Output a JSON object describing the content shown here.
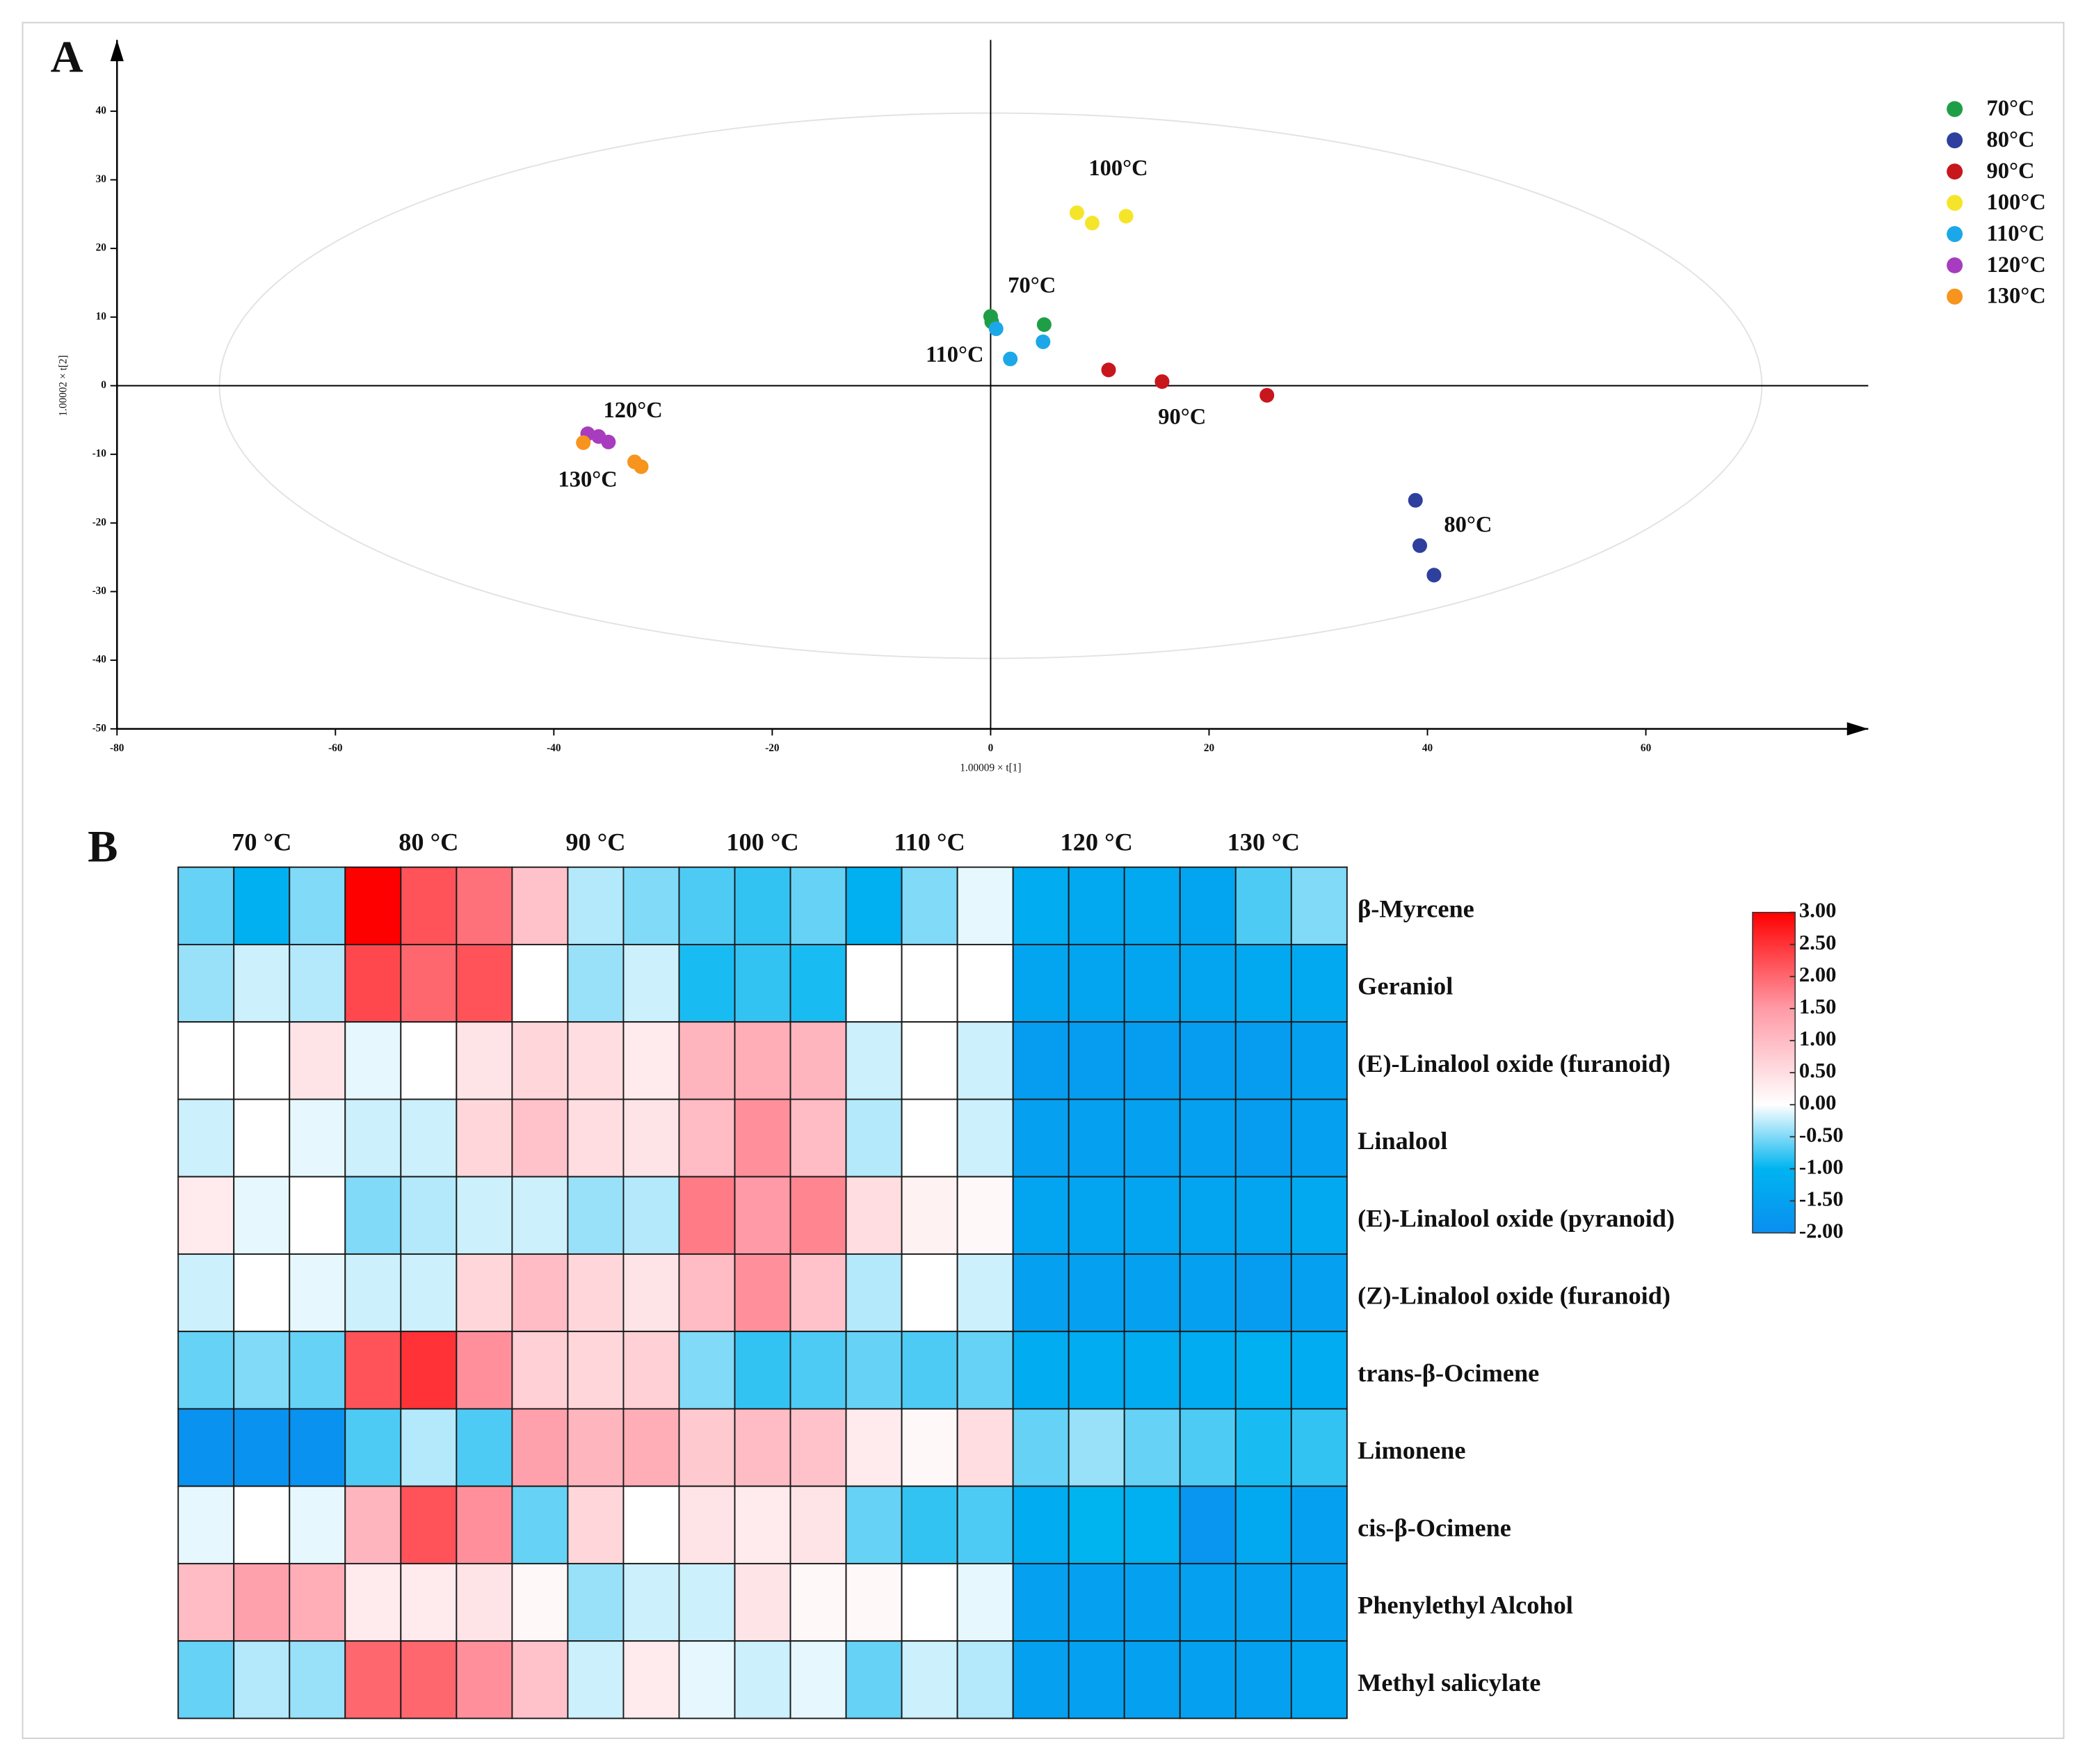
{
  "chart_data": [
    {
      "type": "scatter",
      "panel": "A",
      "xlabel": "1.00009 × t[1]",
      "ylabel": "1.00002 × t[2]",
      "xlim": [
        -80,
        80
      ],
      "ylim": [
        -50,
        50
      ],
      "xticks": [
        -80,
        -60,
        -40,
        -20,
        0,
        20,
        40,
        60
      ],
      "yticks": [
        -50,
        -40,
        -30,
        -20,
        -10,
        0,
        10,
        20,
        30,
        40
      ],
      "series": [
        {
          "name": "70°C",
          "color": "#1f9e48",
          "x": [
            0,
            0.1,
            4.9
          ],
          "values": [
            10.1,
            9.3,
            8.9
          ]
        },
        {
          "name": "80°C",
          "color": "#2e3f9e",
          "x": [
            38.9,
            39.3,
            40.6
          ],
          "values": [
            -16.7,
            -23.3,
            -27.6
          ]
        },
        {
          "name": "90°C",
          "color": "#c8161d",
          "x": [
            10.8,
            15.7,
            25.3
          ],
          "values": [
            2.3,
            0.6,
            -1.4
          ]
        },
        {
          "name": "100°C",
          "color": "#f5e52a",
          "x": [
            7.9,
            9.3,
            12.4
          ],
          "values": [
            25.2,
            23.7,
            24.7
          ]
        },
        {
          "name": "110°C",
          "color": "#1ca8e8",
          "x": [
            0.5,
            1.8,
            4.8
          ],
          "values": [
            8.3,
            3.9,
            6.4
          ]
        },
        {
          "name": "120°C",
          "color": "#a83cbf",
          "x": [
            -36.9,
            -35.9,
            -35.0
          ],
          "values": [
            -7.0,
            -7.4,
            -8.2
          ]
        },
        {
          "name": "130°C",
          "color": "#f7941d",
          "x": [
            -37.3,
            -32.6,
            -32.0
          ],
          "values": [
            -8.3,
            -11.1,
            -11.8
          ]
        }
      ],
      "annotations": [
        "100°C",
        "70°C",
        "110°C",
        "90°C",
        "80°C",
        "120°C",
        "130°C"
      ],
      "legend": "right"
    },
    {
      "type": "heatmap",
      "panel": "B",
      "categories": [
        "70 °C",
        "80 °C",
        "90 °C",
        "100 °C",
        "110 °C",
        "120 °C",
        "130 °C"
      ],
      "rows": [
        "β-Myrcene",
        "Geraniol",
        "(E)-Linalool oxide (furanoid)",
        "Linalool",
        "(E)-Linalool oxide (pyranoid)",
        "(Z)-Linalool oxide (furanoid)",
        "trans-β-Ocimene",
        "Limonene",
        "cis-β-Ocimene",
        "Phenylethyl Alcohol",
        "Methyl salicylate"
      ],
      "values": [
        [
          -0.6,
          -1.1,
          -0.5,
          3.0,
          2.2,
          1.9,
          0.9,
          -0.3,
          -0.5,
          -0.7,
          -0.8,
          -0.6,
          -1.1,
          -0.5,
          -0.1,
          -1.2,
          -1.3,
          -1.3,
          -1.4,
          -0.7,
          -0.5
        ],
        [
          -0.4,
          -0.2,
          -0.3,
          2.3,
          2.0,
          2.2,
          0.0,
          -0.4,
          -0.2,
          -0.9,
          -0.8,
          -0.9,
          0.0,
          0.0,
          0.0,
          -1.4,
          -1.4,
          -1.4,
          -1.4,
          -1.3,
          -1.3
        ],
        [
          0.0,
          0.0,
          0.4,
          -0.1,
          0.0,
          0.4,
          0.6,
          0.5,
          0.3,
          1.1,
          1.2,
          1.1,
          -0.2,
          0.0,
          -0.2,
          -1.6,
          -1.6,
          -1.6,
          -1.6,
          -1.6,
          -1.5
        ],
        [
          -0.2,
          0.0,
          -0.1,
          -0.2,
          -0.2,
          0.6,
          0.9,
          0.5,
          0.4,
          1.0,
          1.6,
          1.0,
          -0.3,
          0.0,
          -0.2,
          -1.5,
          -1.5,
          -1.5,
          -1.5,
          -1.6,
          -1.5
        ],
        [
          0.3,
          -0.1,
          0.0,
          -0.5,
          -0.3,
          -0.2,
          -0.2,
          -0.4,
          -0.3,
          1.8,
          1.5,
          1.7,
          0.5,
          0.2,
          0.1,
          -1.4,
          -1.4,
          -1.4,
          -1.4,
          -1.4,
          -1.3
        ],
        [
          -0.2,
          0.0,
          -0.1,
          -0.2,
          -0.2,
          0.6,
          1.0,
          0.6,
          0.4,
          1.0,
          1.6,
          0.9,
          -0.3,
          0.0,
          -0.2,
          -1.5,
          -1.5,
          -1.5,
          -1.5,
          -1.6,
          -1.5
        ],
        [
          -0.6,
          -0.5,
          -0.6,
          2.2,
          2.5,
          1.6,
          0.7,
          0.6,
          0.7,
          -0.5,
          -0.8,
          -0.7,
          -0.6,
          -0.7,
          -0.6,
          -1.2,
          -1.2,
          -1.2,
          -1.2,
          -1.1,
          -1.2
        ],
        [
          -1.9,
          -1.9,
          -1.9,
          -0.7,
          -0.3,
          -0.7,
          1.4,
          1.1,
          1.2,
          0.8,
          1.0,
          0.9,
          0.3,
          0.1,
          0.5,
          -0.6,
          -0.4,
          -0.6,
          -0.7,
          -0.9,
          -0.8
        ],
        [
          -0.1,
          0.0,
          -0.1,
          1.1,
          2.2,
          1.6,
          -0.6,
          0.6,
          0.0,
          0.4,
          0.3,
          0.4,
          -0.6,
          -0.8,
          -0.7,
          -1.2,
          -1.0,
          -1.1,
          -1.8,
          -1.3,
          -1.5
        ],
        [
          1.0,
          1.4,
          1.2,
          0.3,
          0.3,
          0.4,
          0.1,
          -0.4,
          -0.2,
          -0.2,
          0.4,
          0.1,
          0.1,
          0.0,
          -0.1,
          -1.5,
          -1.5,
          -1.5,
          -1.5,
          -1.5,
          -1.5
        ],
        [
          -0.6,
          -0.3,
          -0.4,
          2.0,
          2.0,
          1.6,
          0.9,
          -0.2,
          0.3,
          -0.1,
          -0.2,
          -0.1,
          -0.6,
          -0.2,
          -0.3,
          -1.5,
          -1.5,
          -1.5,
          -1.5,
          -1.5,
          -1.4
        ]
      ],
      "zlim": [
        -2,
        3
      ],
      "zticks": [
        {
          "value": 3,
          "label": "3.00"
        },
        {
          "value": 2.5,
          "label": "2.50"
        },
        {
          "value": 2,
          "label": "2.00"
        },
        {
          "value": 1.5,
          "label": "1.50"
        },
        {
          "value": 1,
          "label": "1.00"
        },
        {
          "value": 0.5,
          "label": "0.50"
        },
        {
          "value": 0,
          "label": "0.00"
        },
        {
          "value": -0.5,
          "label": "-0.50"
        },
        {
          "value": -1,
          "label": "-1.00"
        },
        {
          "value": -1.5,
          "label": "-1.50"
        },
        {
          "value": -2,
          "label": "-2.00"
        }
      ],
      "colorscale": [
        [
          -2,
          "#0a8ef0"
        ],
        [
          -1,
          "#00b4f0"
        ],
        [
          0,
          "#ffffff"
        ],
        [
          1.5,
          "#ff9aa6"
        ],
        [
          3,
          "#ff0000"
        ]
      ]
    }
  ]
}
